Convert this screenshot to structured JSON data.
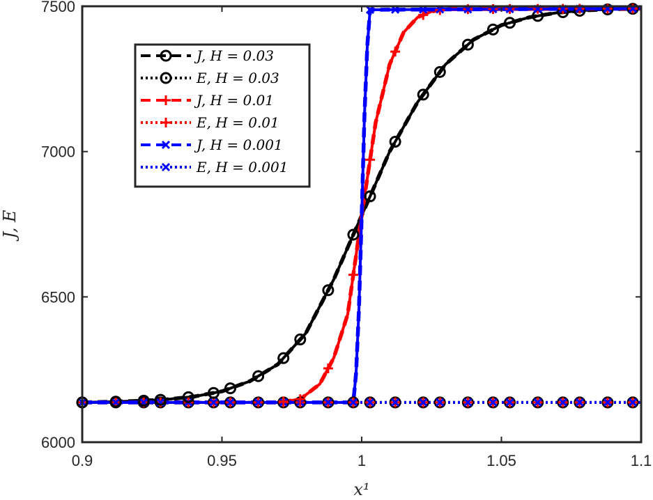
{
  "chart_data": {
    "type": "line",
    "title": "",
    "xlabel": "x¹",
    "ylabel": "J, E",
    "xlim": [
      0.9,
      1.1
    ],
    "ylim": [
      6000,
      7500
    ],
    "xticks": [
      0.9,
      0.95,
      1.0,
      1.05,
      1.1
    ],
    "xtick_labels": [
      "0.9",
      "0.95",
      "1",
      "1.05",
      "1.1"
    ],
    "yticks": [
      6000,
      6500,
      7000,
      7500
    ],
    "ytick_labels": [
      "6000",
      "6500",
      "7000",
      "7500"
    ],
    "grid": false,
    "legend_position": "top-left",
    "colors": {
      "black": "#000000",
      "red": "#ff0000",
      "blue": "#0000ff"
    },
    "series": [
      {
        "name": "J, H = 0.03",
        "color": "#000000",
        "line": "dashed",
        "marker": "circle",
        "x": [
          0.9,
          0.91,
          0.92,
          0.93,
          0.94,
          0.95,
          0.96,
          0.97,
          0.98,
          0.99,
          1.0,
          1.01,
          1.02,
          1.03,
          1.04,
          1.05,
          1.06,
          1.07,
          1.08,
          1.09,
          1.1
        ],
        "values": [
          6137,
          6139,
          6142,
          6147,
          6157,
          6175,
          6210,
          6268,
          6375,
          6560,
          6780,
          7000,
          7170,
          7300,
          7385,
          7435,
          7462,
          7478,
          7486,
          7490,
          7492
        ]
      },
      {
        "name": "E, H = 0.03",
        "color": "#000000",
        "line": "dotted",
        "marker": "circle",
        "x": [
          0.9,
          1.1
        ],
        "values": [
          6137,
          6137
        ]
      },
      {
        "name": "J, H = 0.01",
        "color": "#ff0000",
        "line": "dashed",
        "marker": "plus",
        "x": [
          0.9,
          0.97,
          0.978,
          0.985,
          0.99,
          0.995,
          1.0,
          1.005,
          1.01,
          1.015,
          1.02,
          1.025,
          1.03,
          1.1
        ],
        "values": [
          6137,
          6137,
          6148,
          6200,
          6290,
          6440,
          6780,
          7100,
          7300,
          7410,
          7462,
          7482,
          7490,
          7492
        ]
      },
      {
        "name": "E, H = 0.01",
        "color": "#ff0000",
        "line": "dotted",
        "marker": "plus",
        "x": [
          0.9,
          1.1
        ],
        "values": [
          6137,
          6137
        ]
      },
      {
        "name": "J, H = 0.001",
        "color": "#0000ff",
        "line": "dashed",
        "marker": "x",
        "x": [
          0.9,
          0.997,
          0.9985,
          1.0,
          1.0015,
          1.003,
          1.1
        ],
        "values": [
          6137,
          6137,
          6290,
          6780,
          7300,
          7488,
          7492
        ]
      },
      {
        "name": "E, H = 0.001",
        "color": "#0000ff",
        "line": "dotted",
        "marker": "x",
        "x": [
          0.9,
          1.1
        ],
        "values": [
          6137,
          6137
        ]
      }
    ],
    "legend_entries": [
      "J, H = 0.03",
      "E, H = 0.03",
      "J, H = 0.01",
      "E, H = 0.01",
      "J, H = 0.001",
      "E, H = 0.001"
    ]
  }
}
